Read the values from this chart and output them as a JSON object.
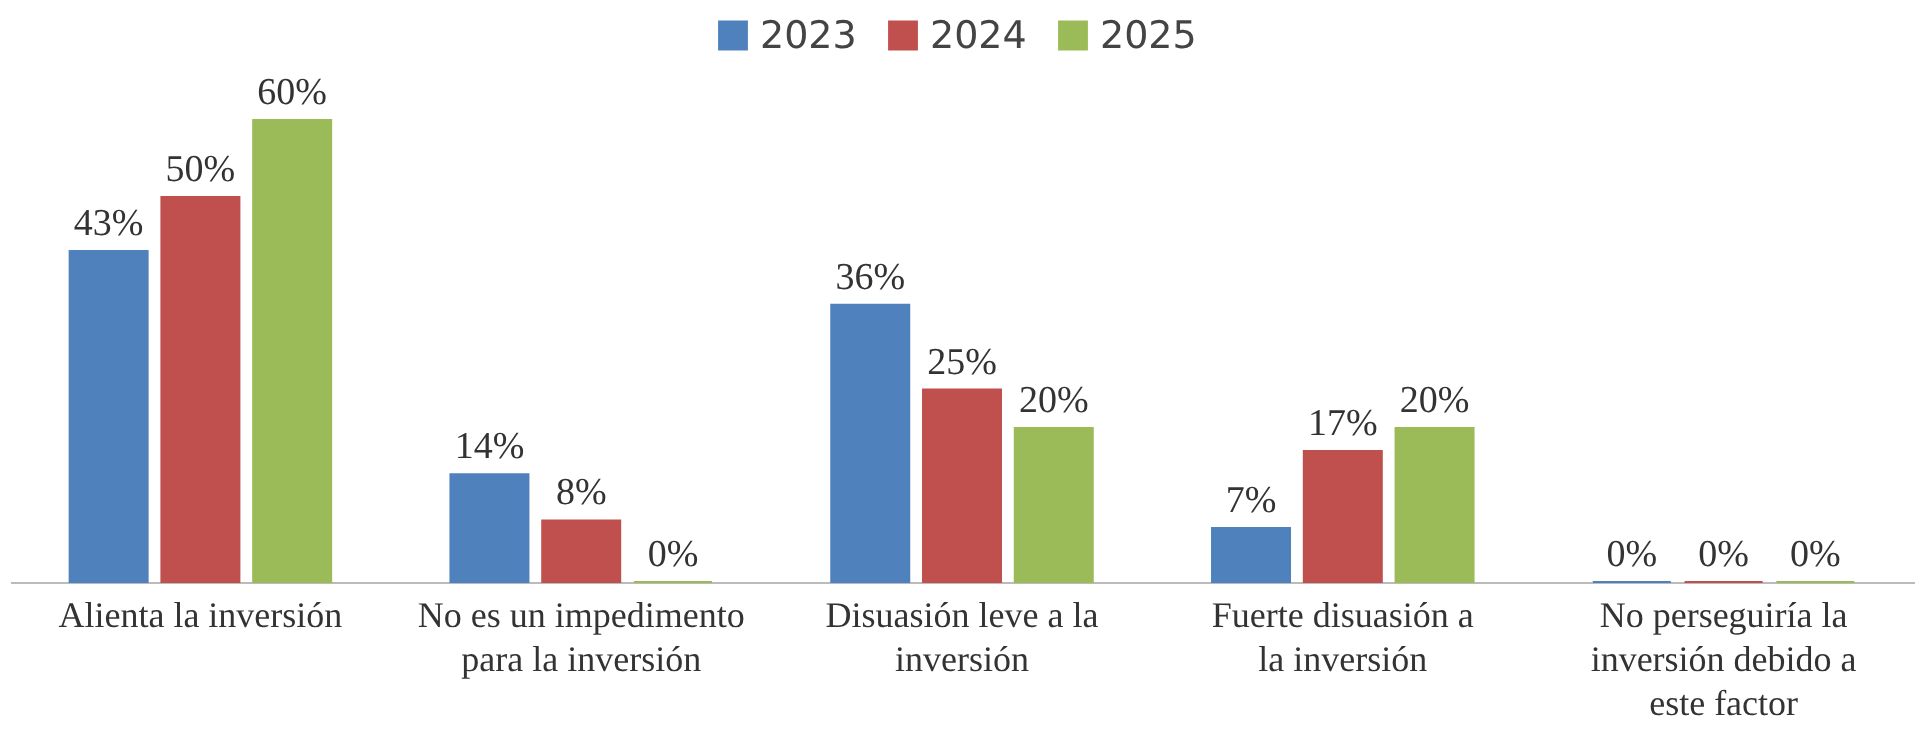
{
  "chart_data": {
    "type": "bar",
    "categories": [
      "Alienta la inversión",
      "No es un impedimento para la inversión",
      "Disuasión leve a la inversión",
      "Fuerte disuasión a la inversión",
      "No perseguiría la inversión debido a este factor"
    ],
    "series": [
      {
        "name": "2023",
        "color": "#4f81bd",
        "values": [
          43,
          14,
          36,
          7,
          0
        ],
        "value_labels": [
          "43%",
          "14%",
          "36%",
          "7%",
          "0%"
        ]
      },
      {
        "name": "2024",
        "color": "#c0504d",
        "values": [
          50,
          8,
          25,
          17,
          0
        ],
        "value_labels": [
          "50%",
          "8%",
          "25%",
          "17%",
          "0%"
        ]
      },
      {
        "name": "2025",
        "color": "#9bbb59",
        "values": [
          60,
          0,
          20,
          20,
          0
        ],
        "value_labels": [
          "60%",
          "0%",
          "20%",
          "20%",
          "0%"
        ]
      }
    ],
    "legend": "top",
    "grid": false
  }
}
